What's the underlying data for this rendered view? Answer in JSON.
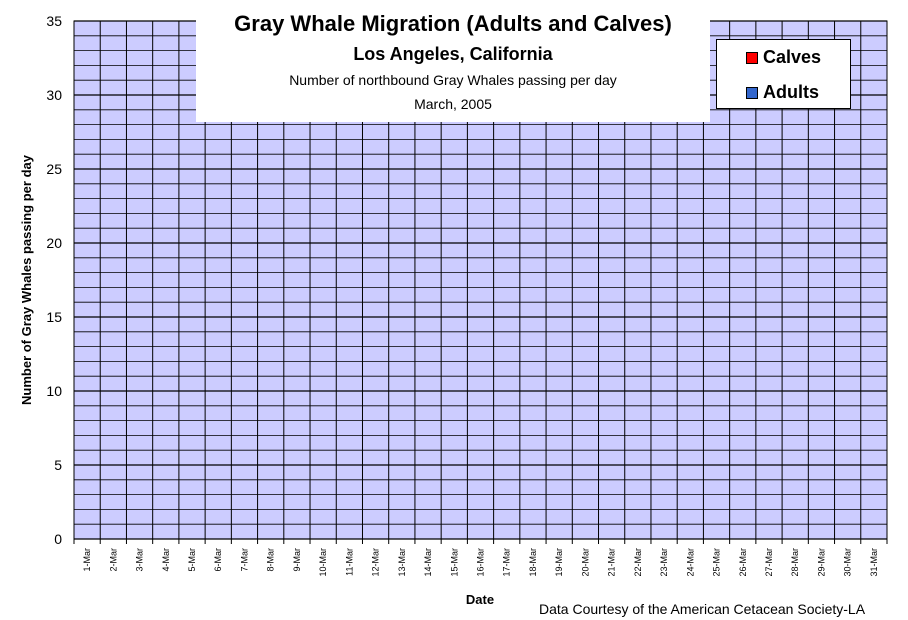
{
  "chart_data": {
    "type": "bar",
    "title": "Gray Whale Migration (Adults and Calves)",
    "subtitle": "Los Angeles, California",
    "subtitle2": "Number of northbound Gray Whales passing per day",
    "subtitle3": "March, 2005",
    "xlabel": "Date",
    "ylabel": "Number of Gray Whales passing per day",
    "ylim": [
      0,
      35
    ],
    "y_major_step": 5,
    "y_minor_step": 1,
    "grid": true,
    "stacked": true,
    "legend_position": "top-right",
    "categories": [
      "1-Mar",
      "2-Mar",
      "3-Mar",
      "4-Mar",
      "5-Mar",
      "6-Mar",
      "7-Mar",
      "8-Mar",
      "9-Mar",
      "10-Mar",
      "11-Mar",
      "12-Mar",
      "13-Mar",
      "14-Mar",
      "15-Mar",
      "16-Mar",
      "17-Mar",
      "18-Mar",
      "19-Mar",
      "20-Mar",
      "21-Mar",
      "22-Mar",
      "23-Mar",
      "24-Mar",
      "25-Mar",
      "26-Mar",
      "27-Mar",
      "28-Mar",
      "29-Mar",
      "30-Mar",
      "31-Mar"
    ],
    "series": [
      {
        "name": "Calves",
        "color": "#ff0000",
        "values": [
          0,
          0,
          0,
          0,
          0,
          0,
          0,
          0,
          0,
          0,
          0,
          0,
          0,
          0,
          0,
          0,
          0,
          0,
          0,
          0,
          0,
          0,
          0,
          0,
          0,
          0,
          0,
          0,
          0,
          0,
          0
        ]
      },
      {
        "name": "Adults",
        "color": "#3366cc",
        "values": [
          0,
          0,
          0,
          0,
          0,
          0,
          0,
          0,
          0,
          0,
          0,
          0,
          0,
          0,
          0,
          0,
          0,
          0,
          0,
          0,
          0,
          0,
          0,
          0,
          0,
          0,
          0,
          0,
          0,
          0,
          0
        ]
      }
    ],
    "credit": "Data Courtesy of the American Cetacean Society-LA"
  },
  "colors": {
    "plot_background": "#ccccff",
    "grid": "#000000"
  }
}
